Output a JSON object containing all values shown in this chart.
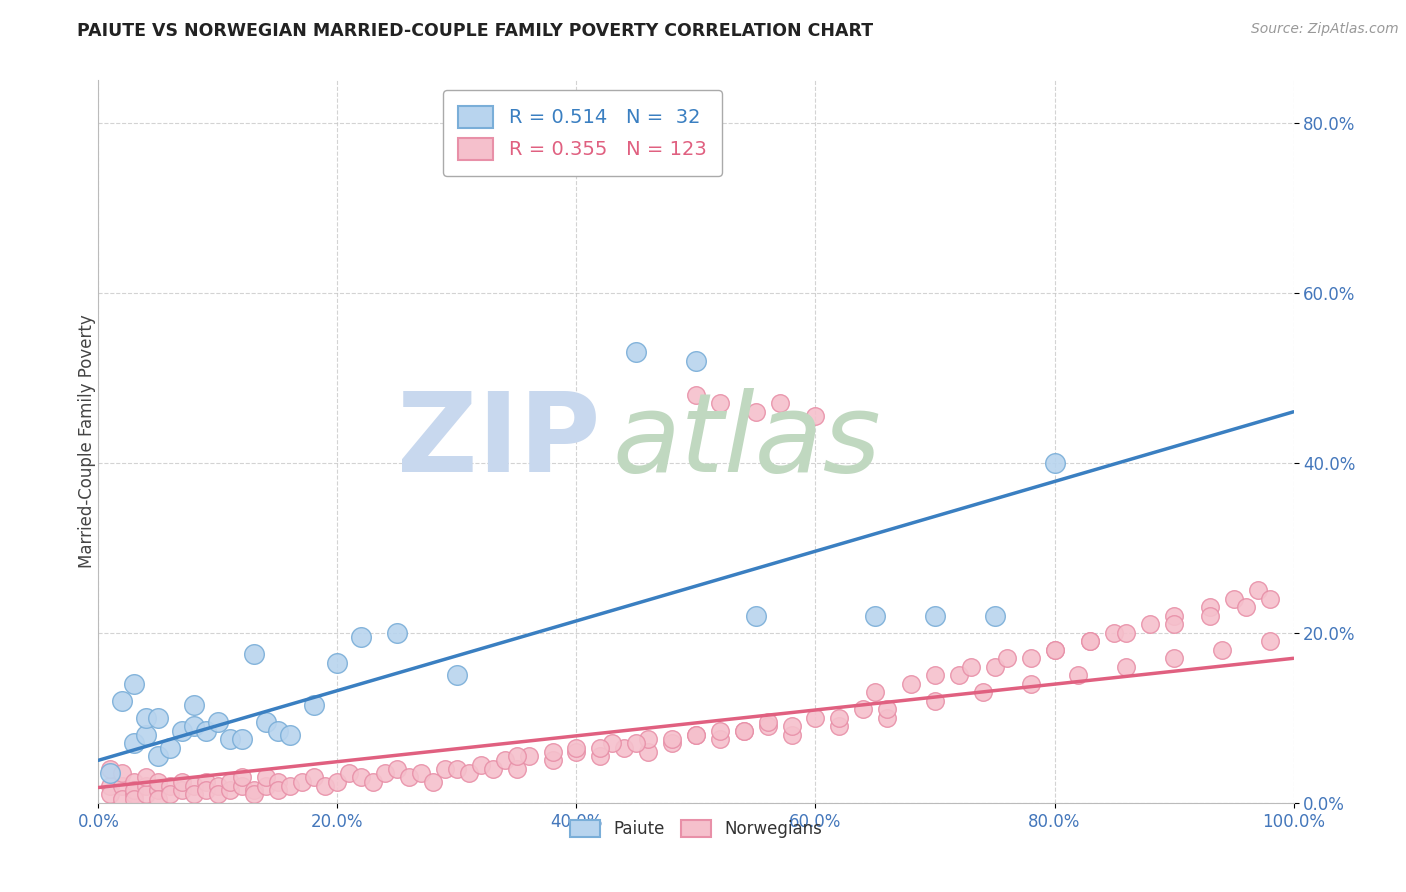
{
  "title": "PAIUTE VS NORWEGIAN MARRIED-COUPLE FAMILY POVERTY CORRELATION CHART",
  "source": "Source: ZipAtlas.com",
  "ylabel": "Married-Couple Family Poverty",
  "paiute_R": 0.514,
  "paiute_N": 32,
  "norwegian_R": 0.355,
  "norwegian_N": 123,
  "background_color": "#ffffff",
  "grid_color": "#c8c8c8",
  "paiute_marker_face": "#b8d4ee",
  "paiute_marker_edge": "#7aaed8",
  "norwegian_marker_face": "#f5c0cc",
  "norwegian_marker_edge": "#e890a8",
  "trend_paiute_color": "#3a7fc1",
  "trend_norwegian_color": "#e06080",
  "tick_color": "#4477bb",
  "title_color": "#222222",
  "source_color": "#999999",
  "ylabel_color": "#444444",
  "watermark_zip_color": "#c8d8ee",
  "watermark_atlas_color": "#c0d8c0",
  "paiute_x": [
    0.01,
    0.02,
    0.03,
    0.03,
    0.04,
    0.04,
    0.05,
    0.05,
    0.06,
    0.07,
    0.08,
    0.08,
    0.09,
    0.1,
    0.11,
    0.12,
    0.13,
    0.14,
    0.15,
    0.16,
    0.18,
    0.2,
    0.22,
    0.25,
    0.3,
    0.45,
    0.5,
    0.55,
    0.65,
    0.7,
    0.75,
    0.8
  ],
  "paiute_y": [
    0.035,
    0.12,
    0.07,
    0.14,
    0.08,
    0.1,
    0.055,
    0.1,
    0.065,
    0.085,
    0.09,
    0.115,
    0.085,
    0.095,
    0.075,
    0.075,
    0.175,
    0.095,
    0.085,
    0.08,
    0.115,
    0.165,
    0.195,
    0.2,
    0.15,
    0.53,
    0.52,
    0.22,
    0.22,
    0.22,
    0.22,
    0.4
  ],
  "norwegian_x": [
    0.01,
    0.01,
    0.01,
    0.02,
    0.02,
    0.02,
    0.03,
    0.03,
    0.03,
    0.03,
    0.04,
    0.04,
    0.04,
    0.05,
    0.05,
    0.05,
    0.06,
    0.06,
    0.07,
    0.07,
    0.08,
    0.08,
    0.09,
    0.09,
    0.1,
    0.1,
    0.11,
    0.11,
    0.12,
    0.12,
    0.13,
    0.13,
    0.14,
    0.14,
    0.15,
    0.15,
    0.16,
    0.17,
    0.18,
    0.19,
    0.2,
    0.21,
    0.22,
    0.23,
    0.24,
    0.25,
    0.26,
    0.27,
    0.28,
    0.29,
    0.3,
    0.31,
    0.32,
    0.33,
    0.34,
    0.35,
    0.36,
    0.38,
    0.4,
    0.42,
    0.44,
    0.46,
    0.48,
    0.5,
    0.52,
    0.54,
    0.56,
    0.58,
    0.6,
    0.62,
    0.64,
    0.66,
    0.5,
    0.52,
    0.55,
    0.57,
    0.6,
    0.65,
    0.68,
    0.72,
    0.75,
    0.78,
    0.8,
    0.83,
    0.85,
    0.88,
    0.9,
    0.93,
    0.95,
    0.97,
    0.7,
    0.73,
    0.76,
    0.8,
    0.83,
    0.86,
    0.9,
    0.93,
    0.96,
    0.98,
    0.4,
    0.43,
    0.46,
    0.5,
    0.54,
    0.58,
    0.62,
    0.66,
    0.7,
    0.74,
    0.78,
    0.82,
    0.86,
    0.9,
    0.94,
    0.98,
    0.35,
    0.38,
    0.42,
    0.45,
    0.48,
    0.52,
    0.56
  ],
  "norwegian_y": [
    0.02,
    0.04,
    0.01,
    0.02,
    0.035,
    0.005,
    0.01,
    0.025,
    0.015,
    0.005,
    0.02,
    0.01,
    0.03,
    0.015,
    0.025,
    0.005,
    0.02,
    0.01,
    0.015,
    0.025,
    0.02,
    0.01,
    0.025,
    0.015,
    0.02,
    0.01,
    0.015,
    0.025,
    0.02,
    0.03,
    0.015,
    0.01,
    0.02,
    0.03,
    0.025,
    0.015,
    0.02,
    0.025,
    0.03,
    0.02,
    0.025,
    0.035,
    0.03,
    0.025,
    0.035,
    0.04,
    0.03,
    0.035,
    0.025,
    0.04,
    0.04,
    0.035,
    0.045,
    0.04,
    0.05,
    0.04,
    0.055,
    0.05,
    0.06,
    0.055,
    0.065,
    0.06,
    0.07,
    0.08,
    0.075,
    0.085,
    0.09,
    0.08,
    0.1,
    0.09,
    0.11,
    0.1,
    0.48,
    0.47,
    0.46,
    0.47,
    0.455,
    0.13,
    0.14,
    0.15,
    0.16,
    0.17,
    0.18,
    0.19,
    0.2,
    0.21,
    0.22,
    0.23,
    0.24,
    0.25,
    0.15,
    0.16,
    0.17,
    0.18,
    0.19,
    0.2,
    0.21,
    0.22,
    0.23,
    0.24,
    0.065,
    0.07,
    0.075,
    0.08,
    0.085,
    0.09,
    0.1,
    0.11,
    0.12,
    0.13,
    0.14,
    0.15,
    0.16,
    0.17,
    0.18,
    0.19,
    0.055,
    0.06,
    0.065,
    0.07,
    0.075,
    0.085,
    0.095
  ],
  "trend_paiute_x0": 0.0,
  "trend_paiute_y0": 0.05,
  "trend_paiute_x1": 1.0,
  "trend_paiute_y1": 0.46,
  "trend_norwegian_x0": 0.0,
  "trend_norwegian_y0": 0.018,
  "trend_norwegian_x1": 1.0,
  "trend_norwegian_y1": 0.17,
  "xlim": [
    0.0,
    1.0
  ],
  "ylim": [
    0.0,
    0.85
  ],
  "xticks": [
    0.0,
    0.2,
    0.4,
    0.6,
    0.8,
    1.0
  ],
  "xticklabels": [
    "0.0%",
    "20.0%",
    "40.0%",
    "60.0%",
    "80.0%",
    "100.0%"
  ],
  "yticks": [
    0.0,
    0.2,
    0.4,
    0.6,
    0.8
  ],
  "yticklabels": [
    "0.0%",
    "20.0%",
    "40.0%",
    "60.0%",
    "80.0%"
  ]
}
